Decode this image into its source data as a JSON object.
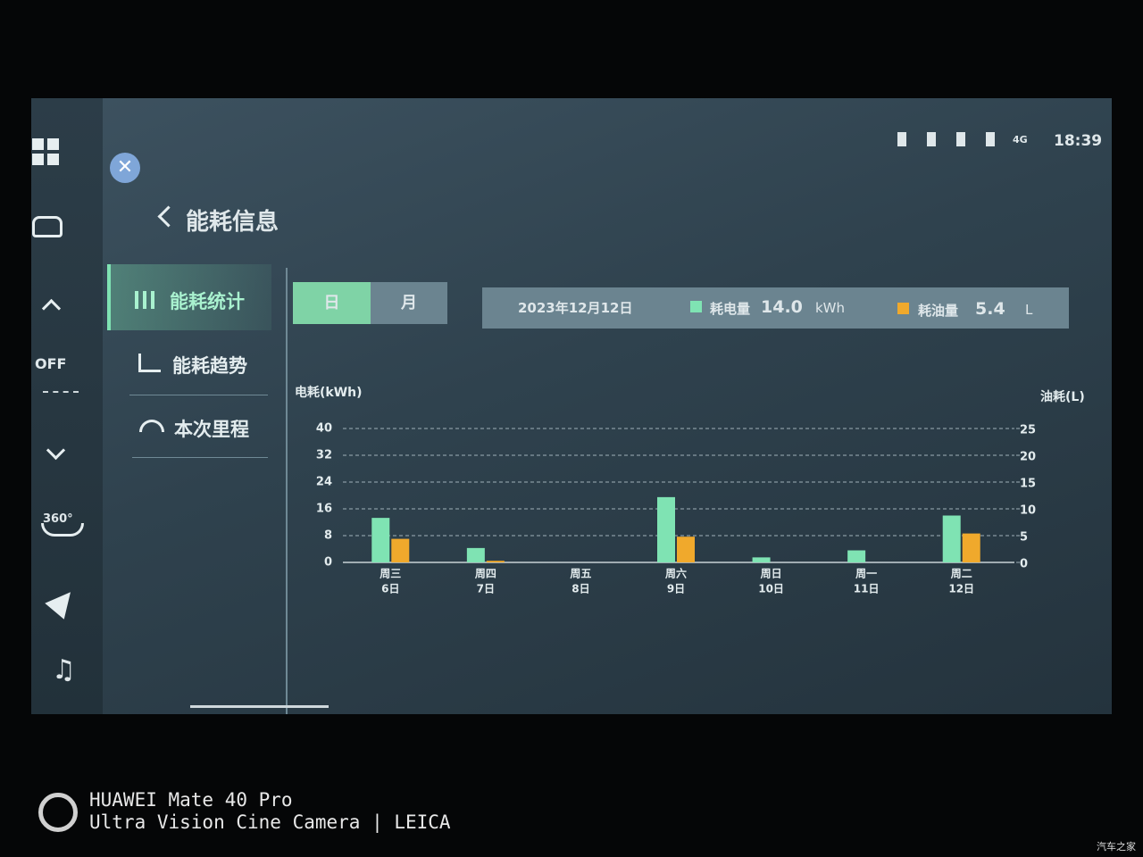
{
  "status": {
    "network": "4G",
    "time": "18:39"
  },
  "rail": {
    "fan": "OFF",
    "camera": "360°"
  },
  "header": {
    "title": "能耗信息"
  },
  "menu": [
    "能耗统计",
    "能耗趋势",
    "本次里程"
  ],
  "period_toggle": [
    "日",
    "月"
  ],
  "summary": {
    "date": "2023年12月12日",
    "electric_value": "14.0",
    "electric_unit": "kWh",
    "fuel_value": "5.4",
    "fuel_unit": "L"
  },
  "chart_data": {
    "type": "bar",
    "y_label": "电耗(kWh)",
    "y2_label": "油耗(L)",
    "categories": [
      [
        "周三",
        "6日"
      ],
      [
        "周四",
        "7日"
      ],
      [
        "周五",
        "8日"
      ],
      [
        "周六",
        "9日"
      ],
      [
        "周日",
        "10日"
      ],
      [
        "周一",
        "11日"
      ],
      [
        "周二",
        "12日"
      ]
    ],
    "series": [
      {
        "name": "耗电量",
        "color": "#7fe3b3",
        "values": [
          13.3,
          4.3,
          0,
          19.5,
          1.5,
          3.6,
          14.0
        ]
      },
      {
        "name": "耗油量",
        "color": "#f0a92c",
        "axis": "y2",
        "values": [
          4.4,
          0.3,
          0,
          4.8,
          0,
          0,
          5.4
        ]
      }
    ],
    "ylim": [
      0,
      40
    ],
    "yticks": [
      0,
      8,
      16,
      24,
      32,
      40
    ],
    "y2lim": [
      0,
      25
    ],
    "y2ticks": [
      0,
      5,
      10,
      15,
      20,
      25
    ],
    "grid": true
  },
  "watermark": {
    "device": "HUAWEI Mate 40 Pro",
    "camera": "Ultra Vision Cine Camera | LEICA",
    "source": "汽车之家"
  }
}
